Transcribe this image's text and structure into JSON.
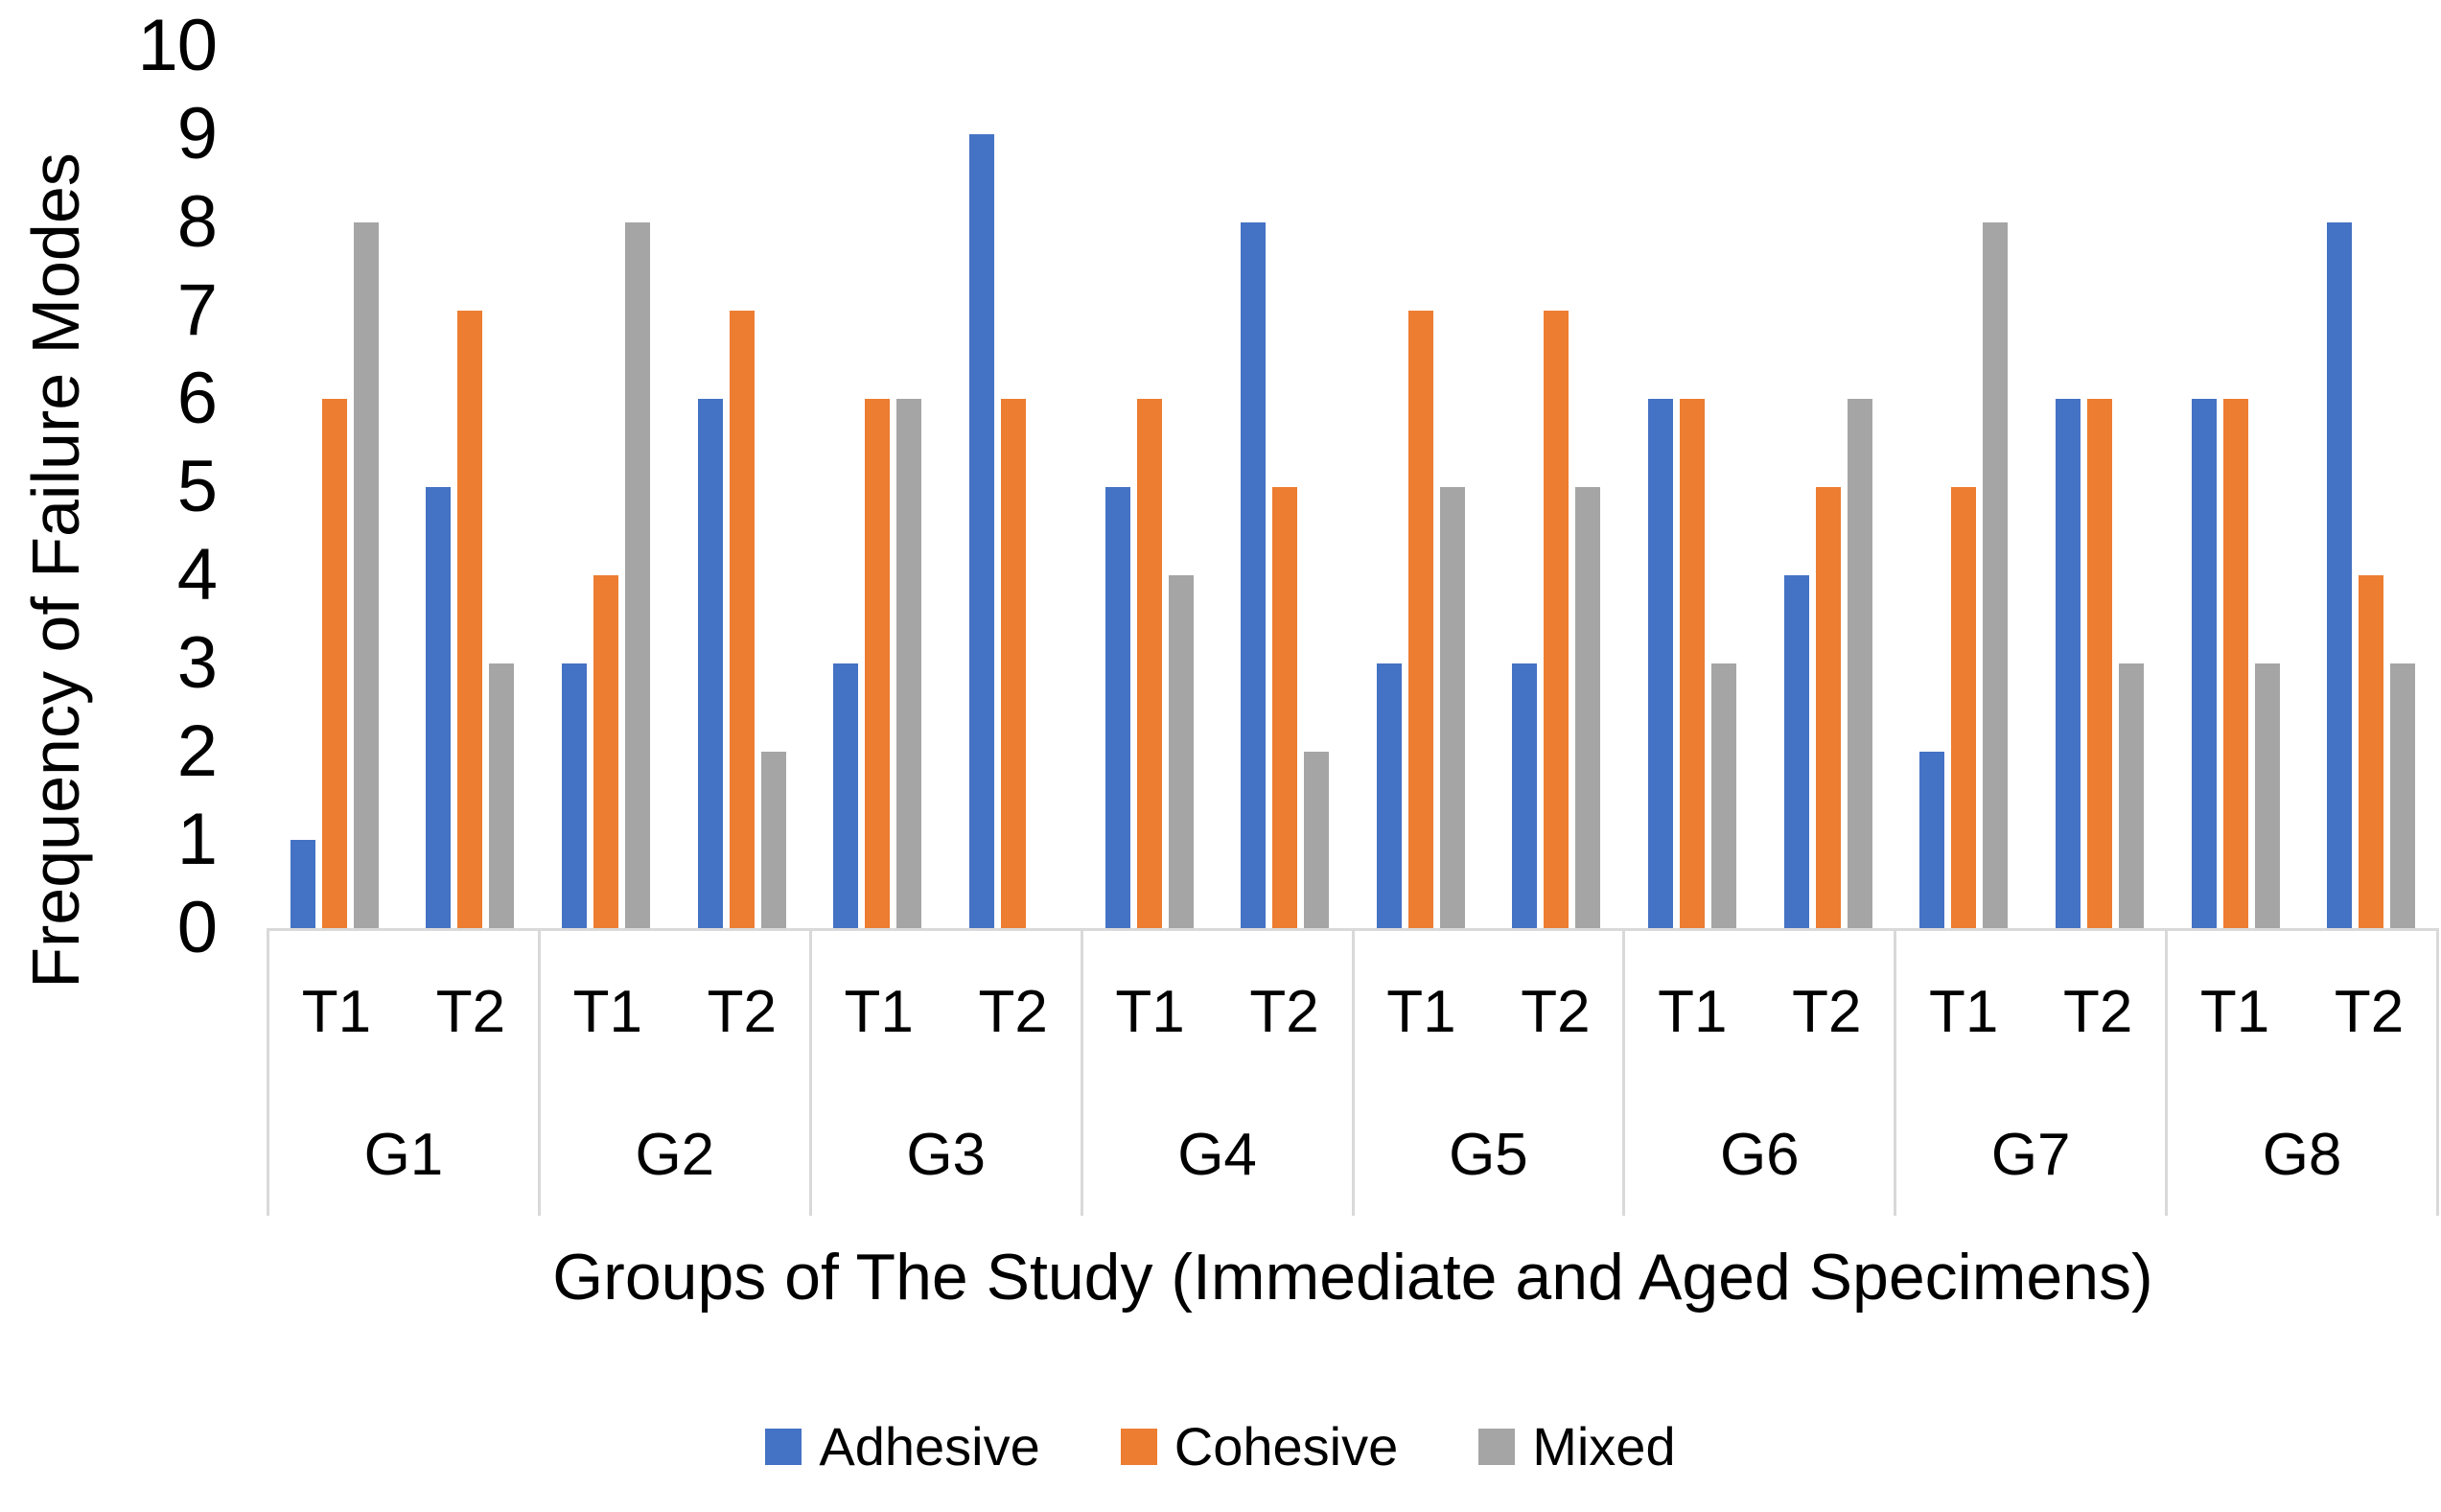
{
  "chart_data": {
    "type": "bar",
    "title": "",
    "xlabel": "Groups of The Study (Immediate and Aged Specimens)",
    "ylabel": "Frequency of Failure Modes",
    "ylim": [
      0,
      10
    ],
    "yticks": [
      0,
      1,
      2,
      3,
      4,
      5,
      6,
      7,
      8,
      9,
      10
    ],
    "grid": false,
    "legend_position": "bottom",
    "axis_color": "#D9D9D9",
    "text_color": "#000000",
    "groups": [
      "G1",
      "G2",
      "G3",
      "G4",
      "G5",
      "G6",
      "G7",
      "G8"
    ],
    "subgroups": [
      "T1",
      "T2"
    ],
    "value_order": "G1T1, G1T2, G2T1, G2T2, G3T1, G3T2, G4T1, G4T2, G5T1, G5T2, G6T1, G6T2, G7T1, G7T2, G8T1, G8T2",
    "series": [
      {
        "name": "Adhesive",
        "color": "#4472C4",
        "values": [
          1,
          5,
          3,
          6,
          3,
          9,
          5,
          8,
          3,
          3,
          6,
          4,
          2,
          6,
          6,
          8
        ]
      },
      {
        "name": "Cohesive",
        "color": "#ED7D31",
        "values": [
          6,
          7,
          4,
          7,
          6,
          6,
          6,
          5,
          7,
          7,
          6,
          5,
          5,
          6,
          6,
          4
        ]
      },
      {
        "name": "Mixed",
        "color": "#A5A5A5",
        "values": [
          8,
          3,
          8,
          2,
          6,
          0,
          4,
          2,
          5,
          5,
          3,
          6,
          8,
          3,
          3,
          3
        ]
      }
    ]
  }
}
